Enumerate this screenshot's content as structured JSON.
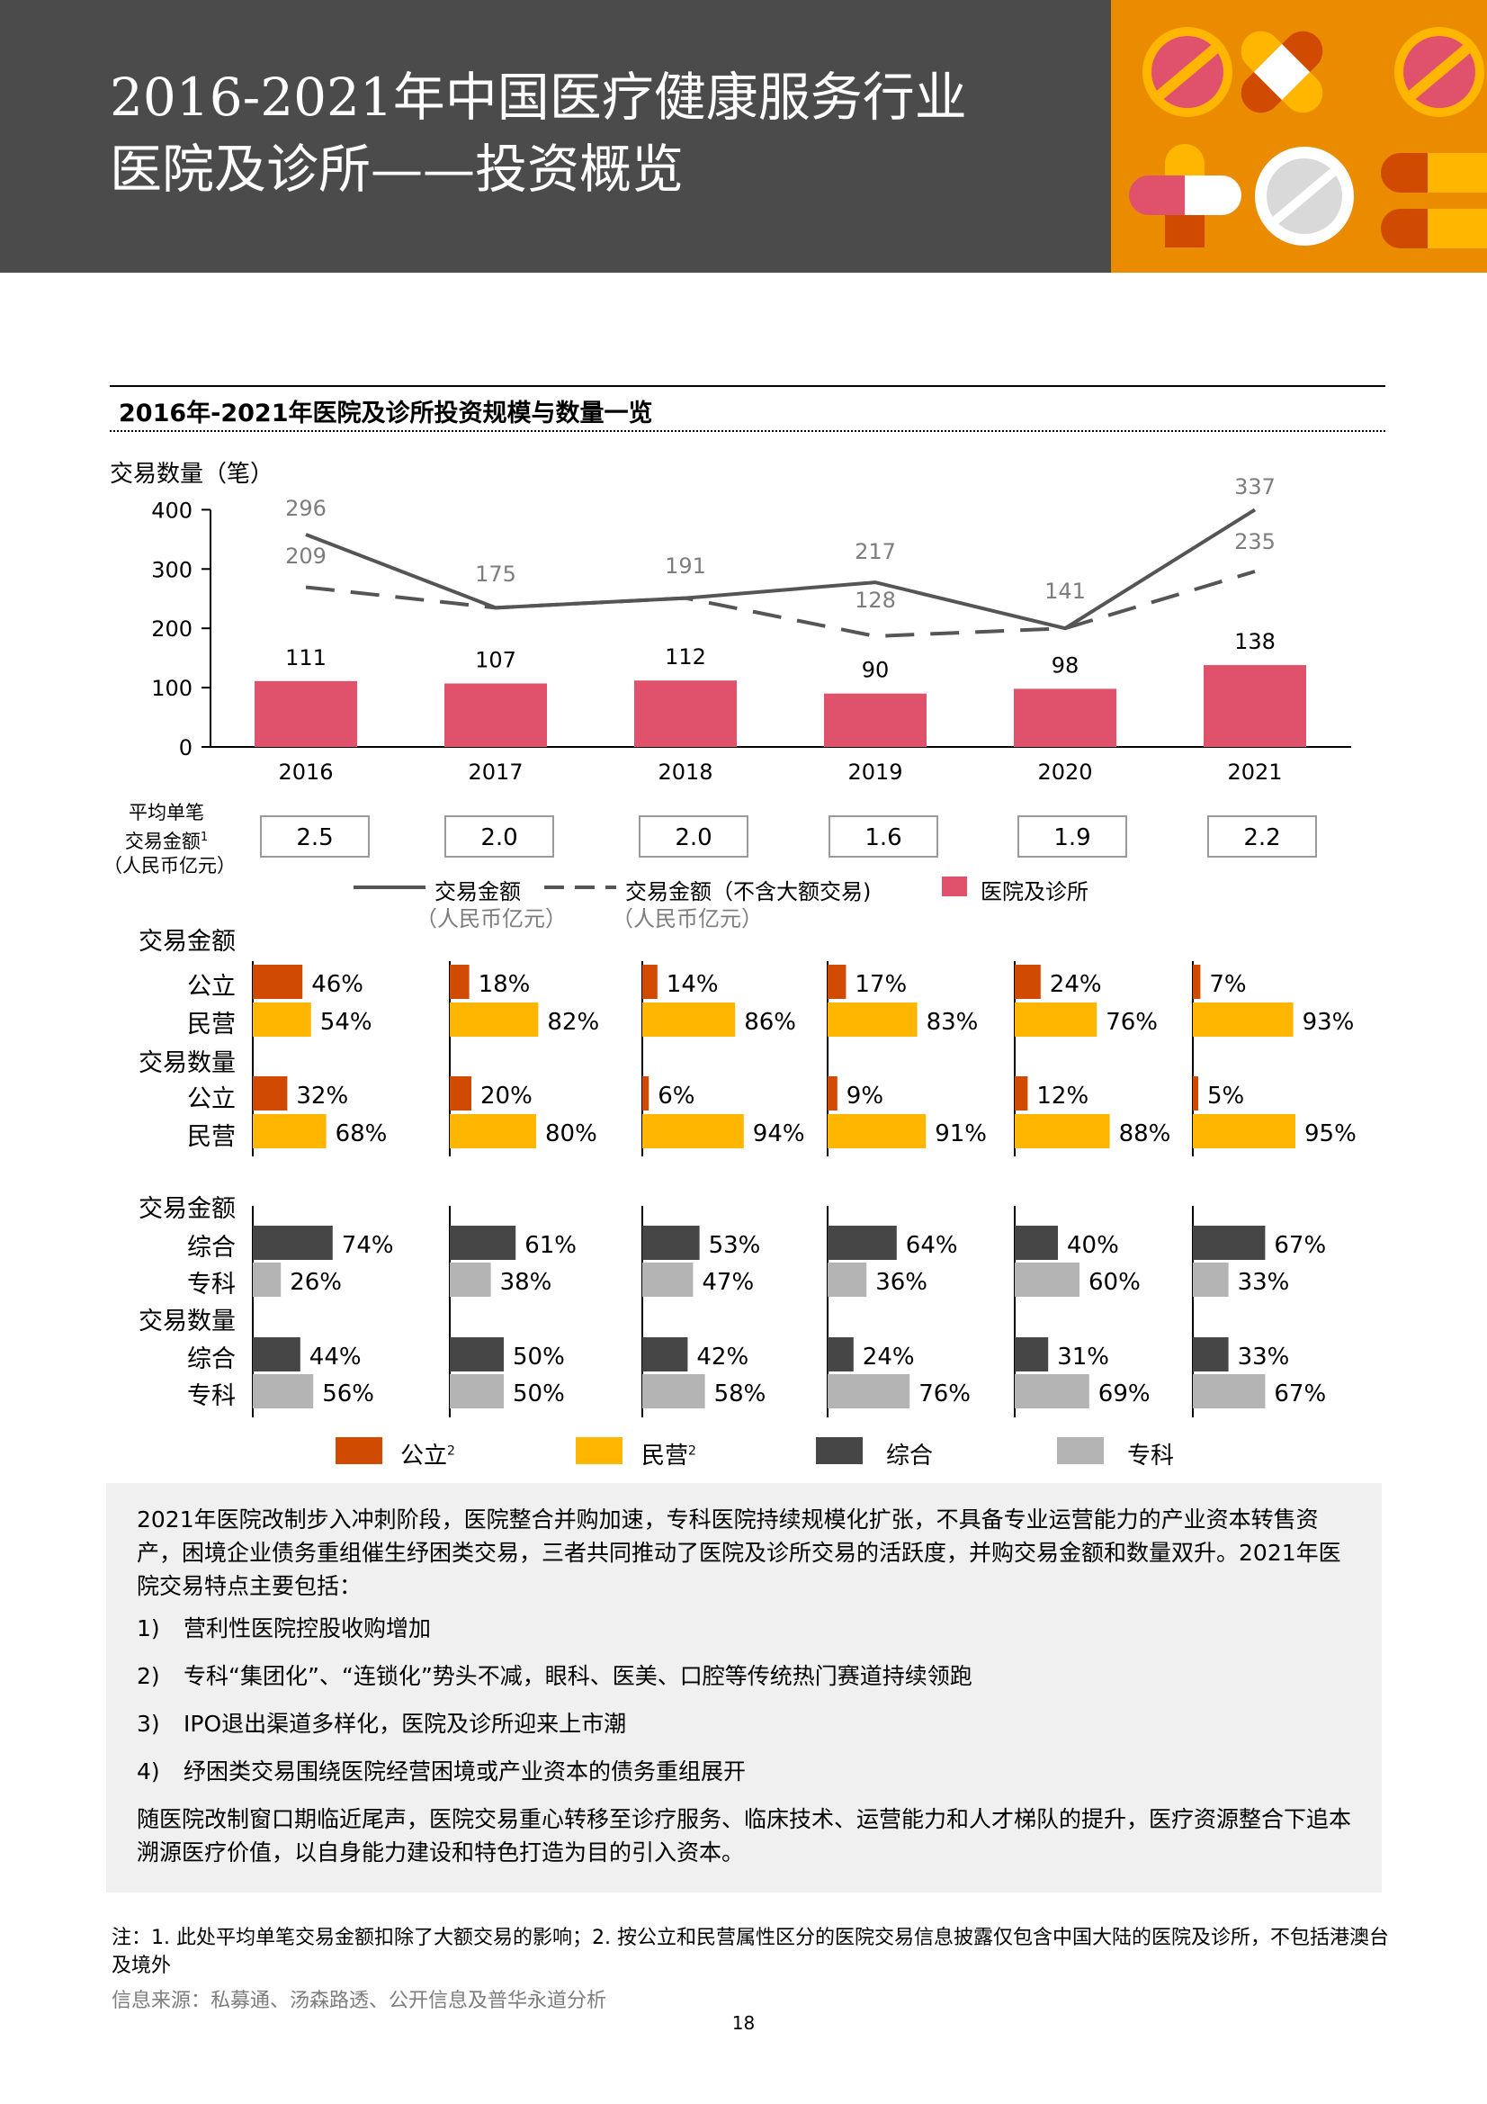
{
  "header": {
    "title_line1": "2016-2021年中国医疗健康服务行业",
    "title_line2": "医院及诊所——投资概览"
  },
  "colors": {
    "header_dark": "#4b4b4b",
    "header_orange": "#eb8c00",
    "bar_pink": "#e0526c",
    "public_orange": "#d04a02",
    "private_yellow": "#ffb600",
    "general_dark": "#464646",
    "specialty_gray": "#b4b4b4",
    "line_gray": "#555555"
  },
  "section_title": "2016年-2021年医院及诊所投资规模与数量一览",
  "chart_data": [
    {
      "type": "bar",
      "ylabel": "交易数量（笔）",
      "ylim": [
        0,
        400
      ],
      "yticks": [
        "0",
        "100",
        "200",
        "300",
        "400"
      ],
      "categories": [
        "2016",
        "2017",
        "2018",
        "2019",
        "2020",
        "2021"
      ],
      "series": [
        {
          "name": "医院及诊所",
          "kind": "bar",
          "values": [
            111,
            107,
            112,
            90,
            98,
            138
          ]
        },
        {
          "name": "交易金额",
          "unit": "（人民币亿元）",
          "kind": "line-solid",
          "values": [
            296,
            175,
            191,
            217,
            141,
            337
          ]
        },
        {
          "name": "交易金额（不含大额交易)",
          "unit": "（人民币亿元）",
          "kind": "line-dashed",
          "values": [
            209,
            175,
            191,
            128,
            141,
            235
          ]
        }
      ],
      "line_scale": {
        "y_at_400": 337,
        "y_at_200": 141
      }
    },
    {
      "type": "bar",
      "title": "交易金额",
      "categories": [
        "2016",
        "2017",
        "2018",
        "2019",
        "2020",
        "2021"
      ],
      "series": [
        {
          "name": "公立",
          "values": [
            46,
            18,
            14,
            17,
            24,
            7
          ]
        },
        {
          "name": "民营",
          "values": [
            54,
            82,
            86,
            83,
            76,
            93
          ]
        }
      ]
    },
    {
      "type": "bar",
      "title": "交易数量",
      "categories": [
        "2016",
        "2017",
        "2018",
        "2019",
        "2020",
        "2021"
      ],
      "series": [
        {
          "name": "公立",
          "values": [
            32,
            20,
            6,
            9,
            12,
            5
          ]
        },
        {
          "name": "民营",
          "values": [
            68,
            80,
            94,
            91,
            88,
            95
          ]
        }
      ]
    },
    {
      "type": "bar",
      "title": "交易金额",
      "categories": [
        "2016",
        "2017",
        "2018",
        "2019",
        "2020",
        "2021"
      ],
      "series": [
        {
          "name": "综合",
          "values": [
            74,
            61,
            53,
            64,
            40,
            67
          ]
        },
        {
          "name": "专科",
          "values": [
            26,
            38,
            47,
            36,
            60,
            33
          ]
        }
      ]
    },
    {
      "type": "bar",
      "title": "交易数量",
      "categories": [
        "2016",
        "2017",
        "2018",
        "2019",
        "2020",
        "2021"
      ],
      "series": [
        {
          "name": "综合",
          "values": [
            44,
            50,
            42,
            24,
            31,
            33
          ]
        },
        {
          "name": "专科",
          "values": [
            56,
            50,
            58,
            76,
            69,
            67
          ]
        }
      ]
    }
  ],
  "avg_deal": {
    "label_line1": "平均单笔",
    "label_line2": "交易金额",
    "label_sup": "1",
    "label_line3": "（人民币亿元）",
    "values": [
      "2.5",
      "2.0",
      "2.0",
      "1.6",
      "1.9",
      "2.2"
    ]
  },
  "legend_top": {
    "solid": "交易金额",
    "solid_sub": "（人民币亿元）",
    "dashed": "交易金额（不含大额交易)",
    "dashed_sub": "（人民币亿元）",
    "bar": "医院及诊所"
  },
  "legend_bottom": {
    "public": "公立",
    "private": "民营",
    "general": "综合",
    "specialty": "专科",
    "sup": "2"
  },
  "note": {
    "intro": "2021年医院改制步入冲刺阶段，医院整合并购加速，专科医院持续规模化扩张，不具备专业运营能力的产业资本转售资产，困境企业债务重组催生纾困类交易，三者共同推动了医院及诊所交易的活跃度，并购交易金额和数量双升。2021年医院交易特点主要包括：",
    "items": [
      {
        "num": "1)",
        "text": "营利性医院控股收购增加"
      },
      {
        "num": "2)",
        "text": "专科“集团化”、“连锁化”势头不减，眼科、医美、口腔等传统热门赛道持续领跑"
      },
      {
        "num": "3)",
        "text": "IPO退出渠道多样化，医院及诊所迎来上市潮"
      },
      {
        "num": "4)",
        "text": "纾困类交易围绕医院经营困境或产业资本的债务重组展开"
      }
    ],
    "outro": "随医院改制窗口期临近尾声，医院交易重心转移至诊疗服务、临床技术、运营能力和人才梯队的提升，医疗资源整合下追本溯源医疗价值，以自身能力建设和特色打造为目的引入资本。"
  },
  "footnote": "注：1. 此处平均单笔交易金额扣除了大额交易的影响；2. 按公立和民营属性区分的医院交易信息披露仅包含中国大陆的医院及诊所，不包括港澳台及境外",
  "source": "信息来源：私募通、汤森路透、公开信息及普华永道分析",
  "page_number": "18"
}
